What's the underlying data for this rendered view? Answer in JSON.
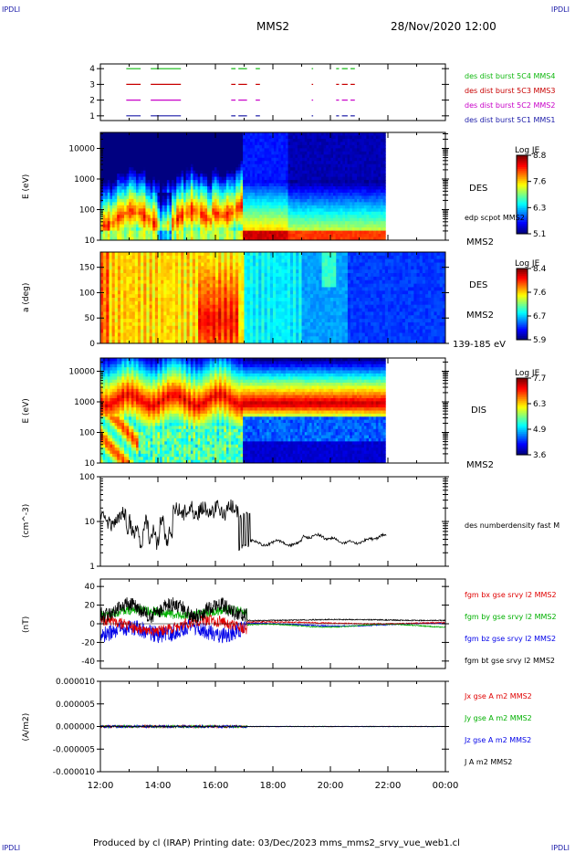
{
  "header": {
    "corner_tl": "IPDLI",
    "corner_tr": "IPDLI",
    "spacecraft": "MMS2",
    "datetime": "28/Nov/2020 12:00"
  },
  "footer": {
    "text": "Produced by cl (IRAP)   Printing date: 03/Dec/2023   mms_mms2_srvy_vue_web1.cl",
    "corner_bl": "IPDLI",
    "corner_br": "IPDLI"
  },
  "chart_data": [
    {
      "id": "burst",
      "type": "line",
      "ylim": [
        0.7,
        4.3
      ],
      "yticks": [
        "1",
        "2",
        "3",
        "4"
      ],
      "legend_placement": "right",
      "series": [
        {
          "name": "des dist burst 5C1 MMS1",
          "color": "#1a1aa8",
          "level": 1
        },
        {
          "name": "des dist burst 5C2 MMS2",
          "color": "#c800c8",
          "level": 2
        },
        {
          "name": "des dist burst 5C3 MMS3",
          "color": "#c80000",
          "level": 3
        },
        {
          "name": "des dist burst 5C4 MMS4",
          "color": "#10b810",
          "level": 4
        }
      ],
      "intervals_h": [
        [
          12.9,
          13.4
        ],
        [
          13.75,
          14.8
        ],
        [
          16.55,
          16.7
        ],
        [
          16.8,
          17.1
        ],
        [
          17.4,
          17.55
        ],
        [
          19.35,
          19.4
        ],
        [
          20.2,
          20.3
        ],
        [
          20.4,
          20.6
        ],
        [
          20.7,
          20.85
        ]
      ]
    },
    {
      "id": "des_energy",
      "type": "heatmap",
      "ylabel": "E (eV)",
      "yscale": "log",
      "yticks": [
        "10",
        "100",
        "1000",
        "10000"
      ],
      "colorbar": {
        "title": "Log JE",
        "ticks": [
          "8.8",
          "7.6",
          "6.3",
          "5.1"
        ]
      },
      "labels": [
        "DES",
        "edp scpot MMS2",
        "MMS2"
      ]
    },
    {
      "id": "des_pitch",
      "type": "heatmap",
      "ylabel": "a (deg)",
      "yticks": [
        "0",
        "50",
        "100",
        "150"
      ],
      "ylim": [
        0,
        180
      ],
      "colorbar": {
        "title": "Log JE",
        "ticks": [
          "8.4",
          "7.6",
          "6.7",
          "5.9"
        ]
      },
      "labels": [
        "DES",
        "MMS2",
        "139-185 eV"
      ]
    },
    {
      "id": "dis_energy",
      "type": "heatmap",
      "ylabel": "E (eV)",
      "yscale": "log",
      "yticks": [
        "10",
        "100",
        "1000",
        "10000"
      ],
      "colorbar": {
        "title": "Log JE",
        "ticks": [
          "7.7",
          "6.3",
          "4.9",
          "3.6"
        ]
      },
      "labels": [
        "DIS",
        "MMS2"
      ]
    },
    {
      "id": "density",
      "type": "line",
      "ylabel": "(cm^-3)",
      "yscale": "log",
      "yticks": [
        "1",
        "10",
        "100"
      ],
      "series": [
        {
          "name": "des numberdensity fast M",
          "color": "#000000"
        }
      ]
    },
    {
      "id": "fgm",
      "type": "line",
      "ylabel": "(nT)",
      "ylim": [
        -48,
        48
      ],
      "yticks": [
        "40",
        "20",
        "0",
        "-20",
        "-40"
      ],
      "series": [
        {
          "name": "fgm bx gse srvy l2 MMS2",
          "color": "#e00000"
        },
        {
          "name": "fgm by gse srvy l2 MMS2",
          "color": "#00b000"
        },
        {
          "name": "fgm bz gse srvy l2 MMS2",
          "color": "#0000e8"
        },
        {
          "name": "fgm bt gse srvy l2 MMS2",
          "color": "#000000"
        }
      ]
    },
    {
      "id": "current",
      "type": "line",
      "ylabel": "(A/m2)",
      "ylim": [
        -1e-05,
        1e-05
      ],
      "yticks": [
        "0.000010",
        "0.000005",
        "0.000000",
        "-0.000005",
        "-0.000010"
      ],
      "series": [
        {
          "name": "Jx gse A m2 MMS2",
          "color": "#e00000"
        },
        {
          "name": "Jy gse A m2 MMS2",
          "color": "#00b000"
        },
        {
          "name": "Jz gse A m2 MMS2",
          "color": "#0000e8"
        },
        {
          "name": "J A m2 MMS2",
          "color": "#000000"
        }
      ]
    }
  ],
  "xaxis": {
    "range_h": [
      12,
      24
    ],
    "tick_labels": [
      "12:00",
      "14:00",
      "16:00",
      "18:00",
      "20:00",
      "22:00",
      "00:00"
    ]
  }
}
